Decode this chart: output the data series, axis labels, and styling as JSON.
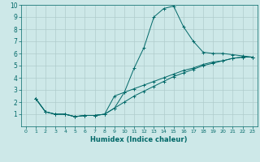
{
  "title": "",
  "xlabel": "Humidex (Indice chaleur)",
  "ylabel": "",
  "background_color": "#cde8e8",
  "grid_color": "#b0cccc",
  "line_color": "#006868",
  "xlim": [
    -0.5,
    23.5
  ],
  "ylim": [
    0,
    10
  ],
  "xticks": [
    0,
    1,
    2,
    3,
    4,
    5,
    6,
    7,
    8,
    9,
    10,
    11,
    12,
    13,
    14,
    15,
    16,
    17,
    18,
    19,
    20,
    21,
    22,
    23
  ],
  "yticks": [
    1,
    2,
    3,
    4,
    5,
    6,
    7,
    8,
    9,
    10
  ],
  "line1_x": [
    1,
    2,
    3,
    4,
    5,
    6,
    7,
    8,
    9,
    10,
    11,
    12,
    13,
    14,
    15,
    16,
    17,
    18,
    19,
    20,
    21,
    22,
    23
  ],
  "line1_y": [
    2.3,
    1.2,
    1.0,
    1.0,
    0.8,
    0.9,
    0.9,
    1.0,
    1.5,
    2.8,
    4.8,
    6.5,
    9.0,
    9.7,
    9.9,
    8.2,
    7.0,
    6.1,
    6.0,
    6.0,
    5.9,
    5.8,
    5.7
  ],
  "line2_x": [
    1,
    2,
    3,
    4,
    5,
    6,
    7,
    8,
    9,
    10,
    11,
    12,
    13,
    14,
    15,
    16,
    17,
    18,
    19,
    20,
    21,
    22,
    23
  ],
  "line2_y": [
    2.3,
    1.2,
    1.0,
    1.0,
    0.8,
    0.9,
    0.9,
    1.0,
    1.5,
    2.0,
    2.5,
    2.9,
    3.3,
    3.7,
    4.1,
    4.4,
    4.7,
    5.0,
    5.2,
    5.4,
    5.6,
    5.7,
    5.7
  ],
  "line3_x": [
    1,
    2,
    3,
    4,
    5,
    6,
    7,
    8,
    9,
    10,
    11,
    12,
    13,
    14,
    15,
    16,
    17,
    18,
    19,
    20,
    21,
    22,
    23
  ],
  "line3_y": [
    2.3,
    1.2,
    1.0,
    1.0,
    0.8,
    0.9,
    0.9,
    1.0,
    2.5,
    2.8,
    3.1,
    3.4,
    3.7,
    4.0,
    4.3,
    4.6,
    4.8,
    5.1,
    5.3,
    5.4,
    5.6,
    5.7,
    5.7
  ]
}
